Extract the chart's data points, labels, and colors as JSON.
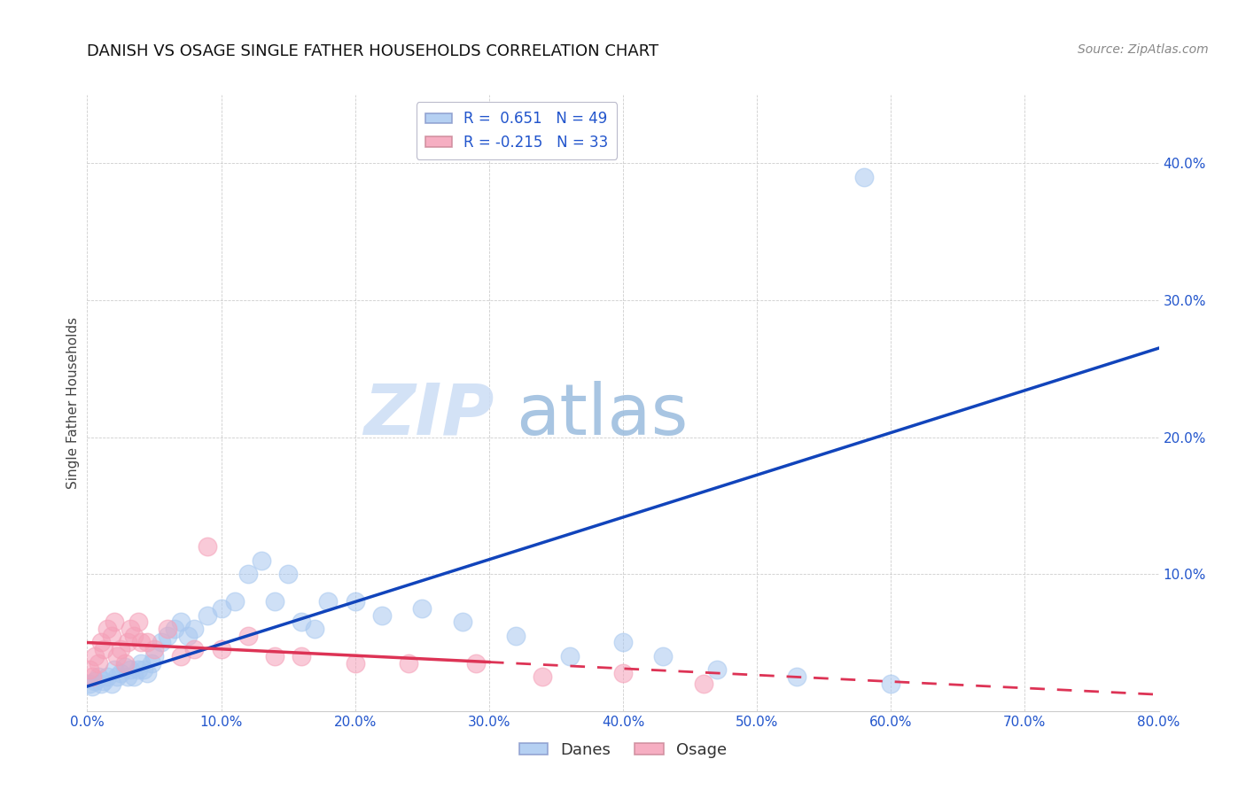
{
  "title": "DANISH VS OSAGE SINGLE FATHER HOUSEHOLDS CORRELATION CHART",
  "source": "Source: ZipAtlas.com",
  "ylabel": "Single Father Households",
  "xlim": [
    0.0,
    0.8
  ],
  "ylim": [
    0.0,
    0.45
  ],
  "legend_blue_r": "0.651",
  "legend_blue_n": "49",
  "legend_pink_r": "-0.215",
  "legend_pink_n": "33",
  "danes_color": "#a8c8f0",
  "osage_color": "#f5a0b8",
  "trend_blue_color": "#1144bb",
  "trend_pink_color": "#dd3355",
  "background_color": "#ffffff",
  "grid_color": "#c8c8c8",
  "danes_x": [
    0.002,
    0.004,
    0.006,
    0.008,
    0.01,
    0.012,
    0.015,
    0.018,
    0.02,
    0.022,
    0.025,
    0.028,
    0.03,
    0.032,
    0.035,
    0.038,
    0.04,
    0.042,
    0.045,
    0.048,
    0.05,
    0.055,
    0.06,
    0.065,
    0.07,
    0.075,
    0.08,
    0.09,
    0.1,
    0.11,
    0.12,
    0.13,
    0.14,
    0.15,
    0.16,
    0.17,
    0.18,
    0.2,
    0.22,
    0.25,
    0.28,
    0.32,
    0.36,
    0.4,
    0.43,
    0.47,
    0.53,
    0.6,
    0.58
  ],
  "danes_y": [
    0.02,
    0.018,
    0.022,
    0.025,
    0.02,
    0.022,
    0.025,
    0.02,
    0.03,
    0.025,
    0.028,
    0.032,
    0.025,
    0.03,
    0.025,
    0.03,
    0.035,
    0.03,
    0.028,
    0.035,
    0.04,
    0.05,
    0.055,
    0.06,
    0.065,
    0.055,
    0.06,
    0.07,
    0.075,
    0.08,
    0.1,
    0.11,
    0.08,
    0.1,
    0.065,
    0.06,
    0.08,
    0.08,
    0.07,
    0.075,
    0.065,
    0.055,
    0.04,
    0.05,
    0.04,
    0.03,
    0.025,
    0.02,
    0.39
  ],
  "osage_x": [
    0.002,
    0.004,
    0.006,
    0.008,
    0.01,
    0.012,
    0.015,
    0.018,
    0.02,
    0.022,
    0.025,
    0.028,
    0.03,
    0.032,
    0.035,
    0.038,
    0.04,
    0.045,
    0.05,
    0.06,
    0.07,
    0.08,
    0.09,
    0.1,
    0.12,
    0.14,
    0.16,
    0.2,
    0.24,
    0.29,
    0.34,
    0.4,
    0.46
  ],
  "osage_y": [
    0.03,
    0.025,
    0.04,
    0.035,
    0.05,
    0.045,
    0.06,
    0.055,
    0.065,
    0.04,
    0.045,
    0.035,
    0.05,
    0.06,
    0.055,
    0.065,
    0.05,
    0.05,
    0.045,
    0.06,
    0.04,
    0.045,
    0.12,
    0.045,
    0.055,
    0.04,
    0.04,
    0.035,
    0.035,
    0.035,
    0.025,
    0.028,
    0.02
  ],
  "trend_blue_x0": 0.0,
  "trend_blue_y0": 0.018,
  "trend_blue_x1": 0.8,
  "trend_blue_y1": 0.265,
  "trend_pink_x0": 0.0,
  "trend_pink_y0": 0.05,
  "trend_pink_x1": 0.8,
  "trend_pink_y1": 0.012,
  "trend_pink_solid_end": 0.3,
  "watermark_zip_color": "#ccddf5",
  "watermark_atlas_color": "#99bbdd"
}
